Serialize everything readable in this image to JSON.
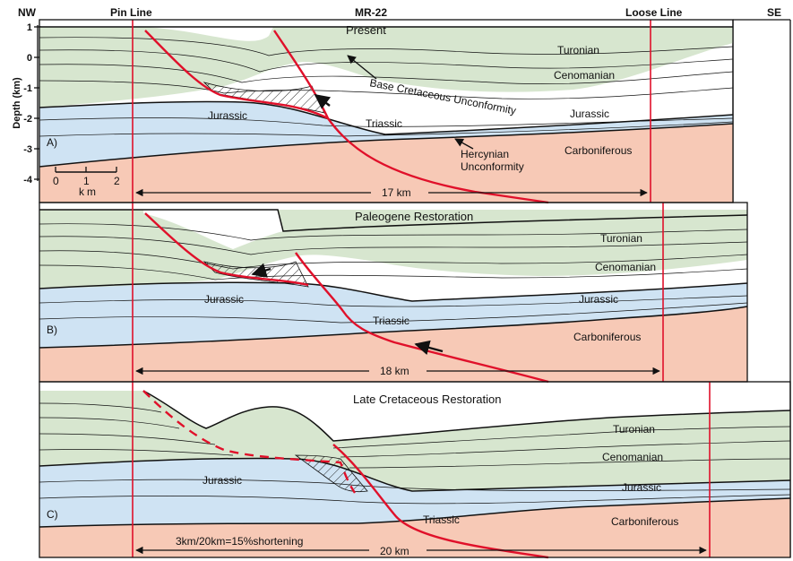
{
  "header": {
    "nw": "NW",
    "pin_line": "Pin Line",
    "well": "MR-22",
    "loose_line": "Loose Line",
    "se": "SE"
  },
  "axis": {
    "label": "Depth (km)",
    "ticks": [
      "1",
      "0",
      "-1",
      "-2",
      "-3",
      "-4"
    ]
  },
  "scale_bar": {
    "ticks": [
      "0",
      "1",
      "2"
    ],
    "unit": "km"
  },
  "colors": {
    "cretaceous": "#d7e6cf",
    "jurassic": "#cfe3f3",
    "carboniferous": "#f7c9b6",
    "fault": "#e0102a",
    "pin_line": "#e0102a",
    "horizon": "#111111"
  },
  "panels": [
    {
      "id": "A",
      "letter": "A)",
      "title": "Present",
      "units": {
        "turonian": "Turonian",
        "cenomanian": "Cenomanian",
        "jurassic_left": "Jurassic",
        "triassic": "Triassic",
        "jurassic_right": "Jurassic",
        "carboniferous": "Carboniferous"
      },
      "annotations": {
        "bcu": "Base Cretaceous Unconformity",
        "hercynian_1": "Hercynian",
        "hercynian_2": "Unconformity"
      },
      "length": "17 km"
    },
    {
      "id": "B",
      "letter": "B)",
      "title": "Paleogene Restoration",
      "units": {
        "turonian": "Turonian",
        "cenomanian": "Cenomanian",
        "jurassic_left": "Jurassic",
        "triassic": "Triassic",
        "jurassic_right": "Jurassic",
        "carboniferous": "Carboniferous"
      },
      "length": "18 km"
    },
    {
      "id": "C",
      "letter": "C)",
      "title": "Late Cretaceous Restoration",
      "units": {
        "turonian": "Turonian",
        "cenomanian": "Cenomanian",
        "jurassic_left": "Jurassic",
        "triassic": "Triassic",
        "jurassic_right": "Jurassic",
        "carboniferous": "Carboniferous"
      },
      "shortening": "3km/20km=15%shortening",
      "length": "20 km"
    }
  ]
}
